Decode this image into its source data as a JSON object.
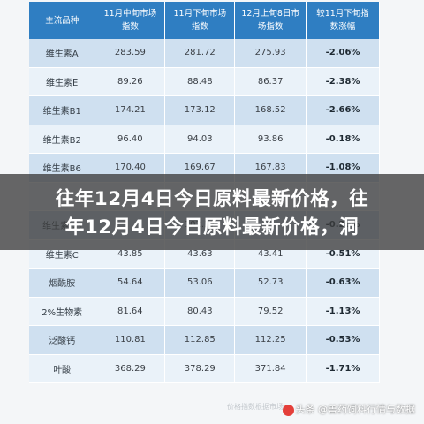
{
  "table": {
    "headers": [
      "主流品种",
      "11月中旬市场指数",
      "11月下旬市场指数",
      "12月上旬8日市场指数",
      "较11月下旬指数涨幅"
    ],
    "header_lines": [
      [
        "主流品种",
        ""
      ],
      [
        "11月中旬市场",
        "指数"
      ],
      [
        "11月下旬市场",
        "指数"
      ],
      [
        "12月上旬8日市",
        "场指数"
      ],
      [
        "较11月下旬指",
        "数涨幅"
      ]
    ],
    "rows": [
      {
        "name": "维生素A",
        "mid_nov": "283.59",
        "late_nov": "281.72",
        "early_dec": "275.93",
        "change": "-2.06%"
      },
      {
        "name": "维生素E",
        "mid_nov": "89.26",
        "late_nov": "88.48",
        "early_dec": "86.37",
        "change": "-2.38%"
      },
      {
        "name": "维生素B1",
        "mid_nov": "174.21",
        "late_nov": "173.12",
        "early_dec": "168.52",
        "change": "-2.66%"
      },
      {
        "name": "维生素B2",
        "mid_nov": "96.40",
        "late_nov": "94.03",
        "early_dec": "93.86",
        "change": "-0.18%"
      },
      {
        "name": "维生素B6",
        "mid_nov": "170.40",
        "late_nov": "169.67",
        "early_dec": "167.83",
        "change": "-1.08%"
      },
      {
        "name": "",
        "mid_nov": "",
        "late_nov": "",
        "early_dec": "",
        "change": ""
      },
      {
        "name": "维生素D3",
        "mid_nov": "",
        "late_nov": "102.37",
        "early_dec": "",
        "change": "-0.26%"
      },
      {
        "name": "维生素C",
        "mid_nov": "43.85",
        "late_nov": "43.63",
        "early_dec": "43.41",
        "change": "-0.51%"
      },
      {
        "name": "烟酰胺",
        "mid_nov": "54.64",
        "late_nov": "53.06",
        "early_dec": "52.73",
        "change": "-0.63%"
      },
      {
        "name": "2%生物素",
        "mid_nov": "81.64",
        "late_nov": "80.43",
        "early_dec": "79.52",
        "change": "-1.13%"
      },
      {
        "name": "泛酸钙",
        "mid_nov": "110.81",
        "late_nov": "112.85",
        "early_dec": "112.25",
        "change": "-0.53%"
      },
      {
        "name": "叶酸",
        "mid_nov": "368.29",
        "late_nov": "378.29",
        "early_dec": "371.84",
        "change": "-1.71%"
      }
    ]
  },
  "banner": {
    "line1": "往年12月4日今日原料最新价格，往",
    "line2": "年12月4日今日原料最新价格，洞"
  },
  "footer": {
    "source": "价格指数根据市场",
    "watermark": "头条 @兽药饲料行情与数据"
  }
}
